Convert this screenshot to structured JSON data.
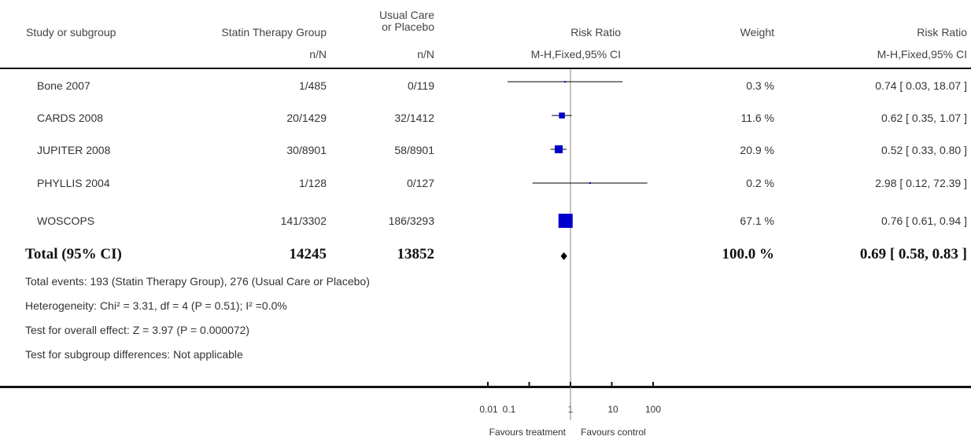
{
  "headers": {
    "study": "Study or subgroup",
    "treatment": "Statin Therapy Group",
    "control_line1": "Usual Care",
    "control_line2": "or Placebo",
    "treatment_sub": "n/N",
    "control_sub": "n/N",
    "risk_ratio": "Risk Ratio",
    "risk_ratio_sub": "M-H,Fixed,95% CI",
    "weight": "Weight",
    "risk_ratio_ci": "Risk Ratio",
    "risk_ratio_ci_sub": "M-H,Fixed,95% CI"
  },
  "studies": [
    {
      "name": "Bone 2007",
      "treatment": "1/485",
      "control": "0/119",
      "weight": "0.3 %",
      "ci_text": "0.74 [ 0.03, 18.07 ]"
    },
    {
      "name": "CARDS 2008",
      "treatment": "20/1429",
      "control": "32/1412",
      "weight": "11.6 %",
      "ci_text": "0.62 [ 0.35, 1.07 ]"
    },
    {
      "name": "JUPITER 2008",
      "treatment": "30/8901",
      "control": "58/8901",
      "weight": "20.9 %",
      "ci_text": "0.52 [ 0.33, 0.80 ]"
    },
    {
      "name": "PHYLLIS 2004",
      "treatment": "1/128",
      "control": "0/127",
      "weight": "0.2 %",
      "ci_text": "2.98 [ 0.12, 72.39 ]"
    },
    {
      "name": "WOSCOPS",
      "treatment": "141/3302",
      "control": "186/3293",
      "weight": "67.1 %",
      "ci_text": "0.76 [ 0.61, 0.94 ]"
    }
  ],
  "total": {
    "label": "Total (95% CI)",
    "treatment": "14245",
    "control": "13852",
    "weight": "100.0 %",
    "ci_text": "0.69 [ 0.58, 0.83 ]"
  },
  "notes": {
    "events": "Total events: 193 (Statin Therapy Group), 276 (Usual Care or Placebo)",
    "heterogeneity": "Heterogeneity: Chi² = 3.31, df = 4 (P = 0.51); I² =0.0%",
    "overall": "Test for overall effect: Z = 3.97 (P = 0.000072)",
    "subgroup": "Test for subgroup differences: Not applicable"
  },
  "axis": {
    "favours_left": "Favours treatment",
    "favours_right": "Favours control"
  },
  "chart_data": {
    "type": "forest",
    "scale": "log",
    "xlim": [
      0.01,
      100
    ],
    "ticks": [
      0.01,
      0.1,
      1,
      10,
      100
    ],
    "tick_labels": [
      "0.01",
      "0.1",
      "1",
      "10",
      "100"
    ],
    "reference_line": 1,
    "marker_color": "#0000cc",
    "studies": [
      {
        "name": "Bone 2007",
        "rr": 0.74,
        "lo": 0.03,
        "hi": 18.07,
        "weight": 0.3
      },
      {
        "name": "CARDS 2008",
        "rr": 0.62,
        "lo": 0.35,
        "hi": 1.07,
        "weight": 11.6
      },
      {
        "name": "JUPITER 2008",
        "rr": 0.52,
        "lo": 0.33,
        "hi": 0.8,
        "weight": 20.9
      },
      {
        "name": "PHYLLIS 2004",
        "rr": 2.98,
        "lo": 0.12,
        "hi": 72.39,
        "weight": 0.2
      },
      {
        "name": "WOSCOPS",
        "rr": 0.76,
        "lo": 0.61,
        "hi": 0.94,
        "weight": 67.1
      }
    ],
    "total": {
      "rr": 0.69,
      "lo": 0.58,
      "hi": 0.83
    }
  }
}
